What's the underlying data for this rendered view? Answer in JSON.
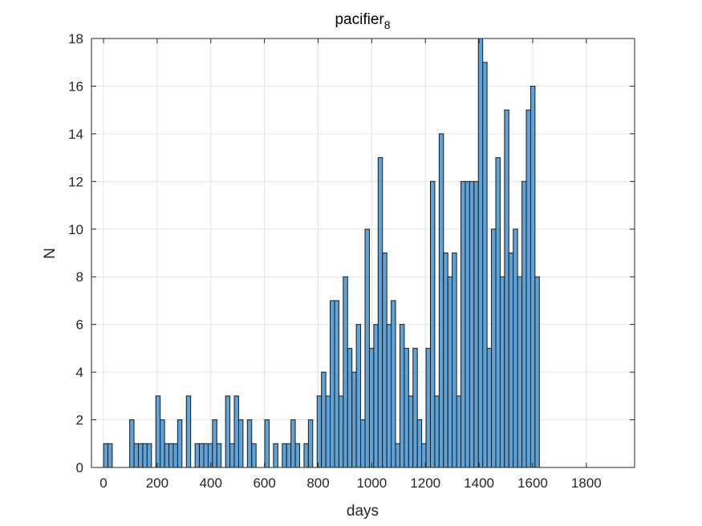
{
  "chart_data": {
    "type": "bar",
    "title": "pacifier",
    "title_subscript": "8",
    "xlabel": "days",
    "ylabel": "N",
    "xlim": [
      -45,
      1980
    ],
    "ylim": [
      0,
      18
    ],
    "xticks": [
      0,
      200,
      400,
      600,
      800,
      1000,
      1200,
      1400,
      1600,
      1800
    ],
    "yticks": [
      0,
      2,
      4,
      6,
      8,
      10,
      12,
      14,
      16,
      18
    ],
    "grid": true,
    "bin_start": 0,
    "bin_width": 16.25,
    "values": [
      1,
      1,
      0,
      0,
      0,
      0,
      2,
      1,
      1,
      1,
      1,
      0,
      3,
      2,
      1,
      1,
      1,
      2,
      0,
      3,
      0,
      1,
      1,
      1,
      1,
      2,
      1,
      0,
      3,
      1,
      3,
      2,
      0,
      2,
      1,
      0,
      0,
      2,
      0,
      1,
      0,
      1,
      1,
      2,
      1,
      0,
      1,
      2,
      0,
      3,
      4,
      3,
      7,
      7,
      3,
      8,
      5,
      4,
      6,
      2,
      10,
      5,
      6,
      13,
      9,
      6,
      7,
      1,
      6,
      5,
      3,
      5,
      2,
      1,
      5,
      12,
      3,
      14,
      9,
      8,
      9,
      3,
      12,
      12,
      12,
      12,
      18,
      17,
      5,
      10,
      13,
      8,
      15,
      9,
      10,
      8,
      12,
      15,
      16,
      8
    ],
    "colors": {
      "bar_fill": "#5EA3D8",
      "bar_edge": "#1a1a1a",
      "grid": "#e3e3e3",
      "axis": "#262626"
    }
  }
}
